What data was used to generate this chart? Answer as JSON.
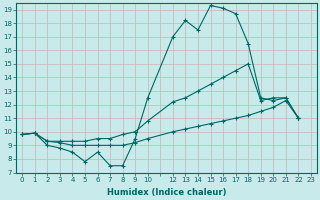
{
  "bg_color": "#c8eaea",
  "grid_color": "#c8b4b4",
  "line_color": "#006666",
  "xlim": [
    -0.5,
    23.5
  ],
  "ylim": [
    7,
    19.5
  ],
  "xlabel": "Humidex (Indice chaleur)",
  "line1_x": [
    0,
    1,
    2,
    3,
    4,
    5,
    6,
    7,
    8,
    9,
    10,
    12,
    13,
    14,
    15,
    16,
    17,
    18,
    19,
    20,
    21,
    22
  ],
  "line1_y": [
    9.8,
    9.9,
    9.0,
    8.8,
    8.5,
    7.8,
    8.5,
    7.5,
    7.5,
    9.5,
    12.5,
    17.0,
    18.2,
    17.5,
    19.3,
    19.1,
    18.7,
    16.5,
    12.5,
    12.3,
    12.5,
    11.0
  ],
  "line2_x": [
    0,
    1,
    2,
    3,
    4,
    5,
    6,
    7,
    8,
    9,
    10,
    12,
    13,
    14,
    15,
    16,
    17,
    18,
    19,
    20,
    21,
    22
  ],
  "line2_y": [
    9.8,
    9.9,
    9.3,
    9.3,
    9.3,
    9.3,
    9.5,
    9.5,
    9.8,
    10.0,
    10.8,
    12.2,
    12.5,
    13.0,
    13.5,
    14.0,
    14.5,
    15.0,
    12.3,
    12.5,
    12.5,
    11.0
  ],
  "line3_x": [
    0,
    1,
    2,
    3,
    4,
    5,
    6,
    7,
    8,
    9,
    10,
    12,
    13,
    14,
    15,
    16,
    17,
    18,
    19,
    20,
    21,
    22
  ],
  "line3_y": [
    9.8,
    9.9,
    9.3,
    9.2,
    9.0,
    9.0,
    9.0,
    9.0,
    9.0,
    9.2,
    9.5,
    10.0,
    10.2,
    10.4,
    10.6,
    10.8,
    11.0,
    11.2,
    11.5,
    11.8,
    12.3,
    11.0
  ],
  "ytick_pos": [
    7,
    8,
    9,
    10,
    11,
    12,
    13,
    14,
    15,
    16,
    17,
    18,
    19
  ],
  "ytick_labels": [
    "7",
    "8",
    "9",
    "10",
    "11",
    "12",
    "13",
    "14",
    "15",
    "16",
    "17",
    "18",
    "19"
  ],
  "xtick_pos": [
    0,
    1,
    2,
    3,
    4,
    5,
    6,
    7,
    8,
    9,
    10,
    11,
    12,
    13,
    14,
    15,
    16,
    17,
    18,
    19,
    20,
    21,
    22,
    23
  ],
  "xtick_labels": [
    "0",
    "1",
    "2",
    "3",
    "4",
    "5",
    "6",
    "7",
    "8",
    "9",
    "10",
    "",
    "12",
    "13",
    "14",
    "15",
    "16",
    "17",
    "18",
    "19",
    "20",
    "21",
    "22",
    "23"
  ]
}
